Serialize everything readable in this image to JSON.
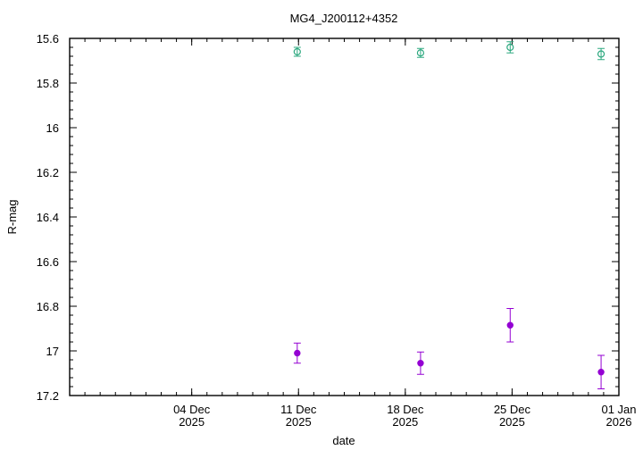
{
  "chart_data": {
    "type": "scatter",
    "title": "MG4_J200112+4352",
    "xlabel": "date",
    "ylabel": "R-mag",
    "y_reversed": true,
    "ylim": [
      15.6,
      17.2
    ],
    "yticks": [
      15.6,
      15.8,
      16,
      16.2,
      16.4,
      16.6,
      16.8,
      17,
      17.2
    ],
    "ytick_labels": [
      "15.6",
      "15.8",
      "16",
      "16.2",
      "16.4",
      "16.6",
      "16.8",
      "17",
      "17.2"
    ],
    "xlim": [
      "2025-11-26",
      "2026-01-01"
    ],
    "xticks": [
      {
        "date": "2025-12-04",
        "line1": "04 Dec",
        "line2": "2025"
      },
      {
        "date": "2025-12-11",
        "line1": "11 Dec",
        "line2": "2025"
      },
      {
        "date": "2025-12-18",
        "line1": "18 Dec",
        "line2": "2025"
      },
      {
        "date": "2025-12-25",
        "line1": "25 Dec",
        "line2": "2025"
      },
      {
        "date": "2026-01-01",
        "line1": "01 Jan",
        "line2": "2026"
      }
    ],
    "grid": false,
    "legend": false,
    "series": [
      {
        "color": "#2ca87f",
        "marker": "open-circle",
        "points": [
          {
            "x": "2025-12-10 22:00",
            "y": 15.66,
            "err": 0.02
          },
          {
            "x": "2025-12-19 00:00",
            "y": 15.665,
            "err": 0.02
          },
          {
            "x": "2025-12-24 21:00",
            "y": 15.64,
            "err": 0.025
          },
          {
            "x": "2025-12-30 20:00",
            "y": 15.67,
            "err": 0.025
          }
        ]
      },
      {
        "color": "#9400d3",
        "marker": "filled-circle",
        "points": [
          {
            "x": "2025-12-10 22:00",
            "y": 17.01,
            "err": 0.045
          },
          {
            "x": "2025-12-19 00:00",
            "y": 17.055,
            "err": 0.05
          },
          {
            "x": "2025-12-24 21:00",
            "y": 16.885,
            "err": 0.075
          },
          {
            "x": "2025-12-30 20:00",
            "y": 17.095,
            "err": 0.075
          }
        ]
      }
    ]
  }
}
